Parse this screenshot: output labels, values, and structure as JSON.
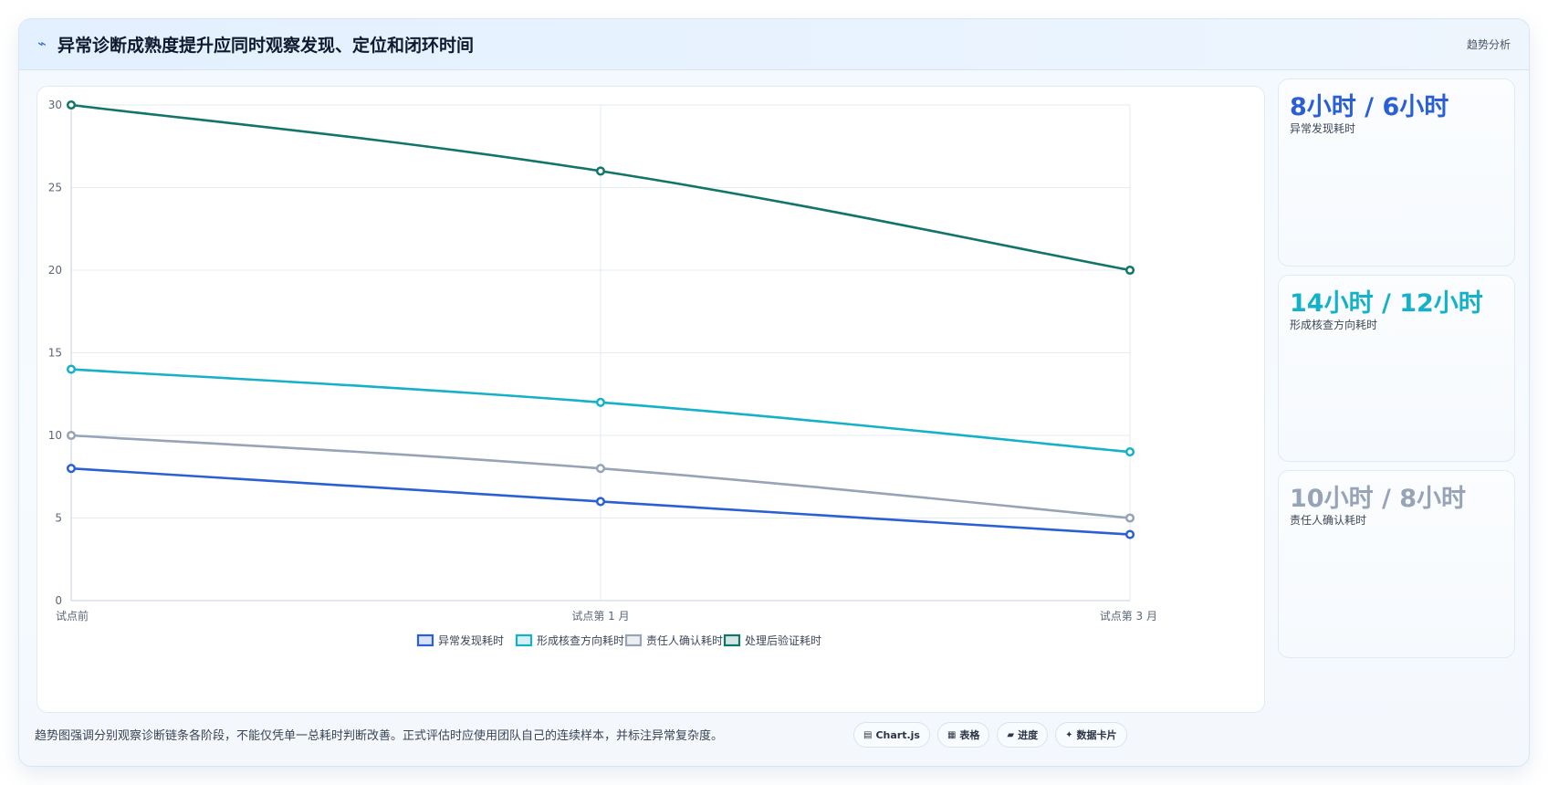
{
  "header": {
    "icon": "trend-icon",
    "title": "异常诊断成熟度提升应同时观察发现、定位和闭环时间",
    "tag": "趋势分析"
  },
  "chart_data": {
    "type": "line",
    "categories": [
      "试点前",
      "试点第 1 月",
      "试点第 3 月"
    ],
    "ylim": [
      0,
      30
    ],
    "yticks": [
      0,
      5,
      10,
      15,
      20,
      25,
      30
    ],
    "grid": true,
    "legend_position": "bottom",
    "series": [
      {
        "name": "异常发现耗时",
        "values": [
          8,
          6,
          4
        ],
        "color": "#2b5fd4"
      },
      {
        "name": "形成核查方向耗时",
        "values": [
          14,
          12,
          9
        ],
        "color": "#14b1c8"
      },
      {
        "name": "责任人确认耗时",
        "values": [
          10,
          8,
          5
        ],
        "color": "#97a3b6"
      },
      {
        "name": "处理后验证耗时",
        "values": [
          30,
          26,
          20
        ],
        "color": "#11756a"
      }
    ]
  },
  "metrics": [
    {
      "value": "8小时 / 6小时",
      "label": "异常发现耗时",
      "color": "#2b5fd4"
    },
    {
      "value": "14小时 / 12小时",
      "label": "形成核查方向耗时",
      "color": "#14b1c8"
    },
    {
      "value": "10小时 / 8小时",
      "label": "责任人确认耗时",
      "color": "#97a3b6"
    }
  ],
  "footnote": "趋势图强调分别观察诊断链条各阶段，不能仅凭单一总耗时判断改善。正式评估时应使用团队自己的连续样本，并标注异常复杂度。",
  "chips": [
    {
      "icon": "chart-icon",
      "glyph": "▤",
      "label": "Chart.js"
    },
    {
      "icon": "table-icon",
      "glyph": "▦",
      "label": "表格"
    },
    {
      "icon": "progress-icon",
      "glyph": "▰",
      "label": "进度"
    },
    {
      "icon": "data-card-icon",
      "glyph": "✦",
      "label": "数据卡片"
    }
  ]
}
